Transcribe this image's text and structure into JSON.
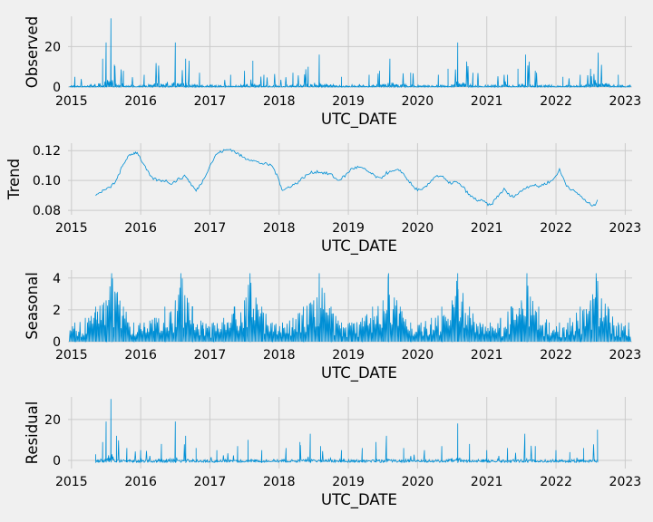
{
  "figure": {
    "background": "#f0f0f0",
    "line_color": "#008fd5",
    "grid_color": "#cbcbcb"
  },
  "chart_data": [
    {
      "type": "line",
      "panel": "observed",
      "xlabel": "UTC_DATE",
      "ylabel": "Observed",
      "xlim": [
        2014.95,
        2023.1
      ],
      "ylim": [
        -0.5,
        35
      ],
      "x_ticks": [
        2015,
        2016,
        2017,
        2018,
        2019,
        2020,
        2021,
        2022,
        2023
      ],
      "x_tick_labels": [
        "2015",
        "2016",
        "2017",
        "2018",
        "2019",
        "2020",
        "2021",
        "2022",
        "2023"
      ],
      "y_ticks": [
        0,
        20
      ],
      "y_tick_labels": [
        "0",
        "20"
      ],
      "grid": true,
      "series": [
        {
          "x": [
            2015.05,
            2015.45,
            2015.5,
            2015.57,
            2015.62,
            2015.75,
            2016.05,
            2016.5,
            2016.65,
            2016.7,
            2016.85,
            2017.3,
            2017.5,
            2017.62,
            2017.78,
            2018.2,
            2018.42,
            2018.58,
            2018.9,
            2019.3,
            2019.45,
            2019.6,
            2019.9,
            2020.3,
            2020.44,
            2020.58,
            2020.8,
            2021.3,
            2021.45,
            2021.56,
            2021.7,
            2022.1,
            2022.35,
            2022.5,
            2022.61,
            2022.9
          ],
          "y": [
            5,
            14,
            22,
            34,
            11,
            8,
            6,
            22,
            14,
            13,
            7,
            6,
            8,
            13,
            6,
            7,
            10,
            16,
            5,
            6,
            8,
            14,
            7,
            6,
            9,
            22,
            7,
            6,
            9,
            16,
            8,
            5,
            6,
            9,
            17,
            6
          ]
        }
      ]
    },
    {
      "type": "line",
      "panel": "trend",
      "xlabel": "UTC_DATE",
      "ylabel": "Trend",
      "xlim": [
        2014.95,
        2023.1
      ],
      "ylim": [
        0.077,
        0.125
      ],
      "x_ticks": [
        2015,
        2016,
        2017,
        2018,
        2019,
        2020,
        2021,
        2022,
        2023
      ],
      "x_tick_labels": [
        "2015",
        "2016",
        "2017",
        "2018",
        "2019",
        "2020",
        "2021",
        "2022",
        "2023"
      ],
      "y_ticks": [
        0.08,
        0.1,
        0.12
      ],
      "y_tick_labels": [
        "0.08",
        "0.10",
        "0.12"
      ],
      "grid": true,
      "series": [
        {
          "x": [
            2015.35,
            2015.45,
            2015.55,
            2015.65,
            2015.72,
            2015.8,
            2015.88,
            2015.95,
            2016.05,
            2016.15,
            2016.25,
            2016.35,
            2016.45,
            2016.55,
            2016.65,
            2016.72,
            2016.8,
            2016.9,
            2017.0,
            2017.1,
            2017.2,
            2017.3,
            2017.4,
            2017.5,
            2017.6,
            2017.7,
            2017.8,
            2017.9,
            2018.0,
            2018.05,
            2018.15,
            2018.25,
            2018.35,
            2018.45,
            2018.55,
            2018.65,
            2018.75,
            2018.85,
            2018.95,
            2019.05,
            2019.15,
            2019.25,
            2019.35,
            2019.45,
            2019.55,
            2019.65,
            2019.75,
            2019.85,
            2019.95,
            2020.05,
            2020.15,
            2020.25,
            2020.35,
            2020.45,
            2020.55,
            2020.65,
            2020.75,
            2020.85,
            2020.95,
            2021.05,
            2021.15,
            2021.25,
            2021.35,
            2021.45,
            2021.55,
            2021.65,
            2021.75,
            2021.85,
            2021.95,
            2022.05,
            2022.15,
            2022.25,
            2022.35,
            2022.45,
            2022.55,
            2022.6
          ],
          "y": [
            0.09,
            0.093,
            0.095,
            0.1,
            0.108,
            0.115,
            0.118,
            0.119,
            0.11,
            0.102,
            0.1,
            0.1,
            0.098,
            0.101,
            0.103,
            0.098,
            0.093,
            0.1,
            0.11,
            0.118,
            0.12,
            0.121,
            0.118,
            0.115,
            0.114,
            0.112,
            0.111,
            0.11,
            0.1,
            0.093,
            0.096,
            0.098,
            0.102,
            0.105,
            0.106,
            0.105,
            0.104,
            0.1,
            0.103,
            0.108,
            0.109,
            0.107,
            0.104,
            0.101,
            0.105,
            0.106,
            0.107,
            0.101,
            0.095,
            0.093,
            0.097,
            0.103,
            0.103,
            0.098,
            0.099,
            0.096,
            0.09,
            0.087,
            0.086,
            0.083,
            0.089,
            0.094,
            0.089,
            0.091,
            0.095,
            0.097,
            0.096,
            0.098,
            0.1,
            0.107,
            0.097,
            0.093,
            0.09,
            0.085,
            0.083,
            0.087
          ]
        }
      ]
    },
    {
      "type": "line",
      "panel": "seasonal",
      "xlabel": "UTC_DATE",
      "ylabel": "Seasonal",
      "xlim": [
        2014.95,
        2023.1
      ],
      "ylim": [
        0,
        4.5
      ],
      "x_ticks": [
        2015,
        2016,
        2017,
        2018,
        2019,
        2020,
        2021,
        2022,
        2023
      ],
      "x_tick_labels": [
        "2015",
        "2016",
        "2017",
        "2018",
        "2019",
        "2020",
        "2021",
        "2022",
        "2023"
      ],
      "y_ticks": [
        0,
        2,
        4
      ],
      "y_tick_labels": [
        "0",
        "2",
        "4"
      ],
      "grid": true,
      "series": [
        {
          "x": [
            2015.05,
            2015.2,
            2015.35,
            2015.5,
            2015.58,
            2015.75,
            2015.9,
            2016.05,
            2016.2,
            2016.35,
            2016.5,
            2016.58,
            2016.75,
            2016.9,
            2017.05,
            2017.2,
            2017.35,
            2017.5,
            2017.58,
            2017.75,
            2017.9,
            2018.05,
            2018.2,
            2018.35,
            2018.5,
            2018.58,
            2018.75,
            2018.9,
            2019.05,
            2019.2,
            2019.35,
            2019.5,
            2019.58,
            2019.75,
            2019.9,
            2020.05,
            2020.2,
            2020.35,
            2020.5,
            2020.58,
            2020.75,
            2020.9,
            2021.05,
            2021.2,
            2021.35,
            2021.5,
            2021.58,
            2021.75,
            2021.9,
            2022.05,
            2022.2,
            2022.35,
            2022.5,
            2022.58,
            2022.75,
            2022.9,
            2023.05
          ],
          "y": [
            1.2,
            1.5,
            2.2,
            2.6,
            4.3,
            2.2,
            1.2,
            1.2,
            1.5,
            2.2,
            2.6,
            4.3,
            2.2,
            1.2,
            1.2,
            1.5,
            2.2,
            2.6,
            4.3,
            2.2,
            1.2,
            1.2,
            1.5,
            2.2,
            2.6,
            4.3,
            2.2,
            1.2,
            1.2,
            1.5,
            2.2,
            2.6,
            4.3,
            2.2,
            1.2,
            1.2,
            1.5,
            2.2,
            2.6,
            4.3,
            2.2,
            1.2,
            1.2,
            1.5,
            2.2,
            2.6,
            4.3,
            2.2,
            1.2,
            1.2,
            1.5,
            2.2,
            2.6,
            4.3,
            2.2,
            1.2,
            1.2
          ]
        }
      ]
    },
    {
      "type": "line",
      "panel": "residual",
      "xlabel": "UTC_DATE",
      "ylabel": "Residual",
      "xlim": [
        2014.95,
        2023.1
      ],
      "ylim": [
        -4,
        31
      ],
      "x_ticks": [
        2015,
        2016,
        2017,
        2018,
        2019,
        2020,
        2021,
        2022,
        2023
      ],
      "x_tick_labels": [
        "2015",
        "2016",
        "2017",
        "2018",
        "2019",
        "2020",
        "2021",
        "2022",
        "2023"
      ],
      "y_ticks": [
        0,
        20
      ],
      "y_tick_labels": [
        "0",
        "20"
      ],
      "grid": true,
      "series": [
        {
          "x": [
            2015.35,
            2015.45,
            2015.5,
            2015.57,
            2015.65,
            2015.8,
            2016.0,
            2016.3,
            2016.5,
            2016.65,
            2016.8,
            2017.1,
            2017.4,
            2017.55,
            2017.75,
            2018.1,
            2018.3,
            2018.45,
            2018.6,
            2018.9,
            2019.2,
            2019.4,
            2019.55,
            2019.8,
            2020.1,
            2020.35,
            2020.58,
            2020.75,
            2021.0,
            2021.3,
            2021.55,
            2021.7,
            2022.0,
            2022.2,
            2022.4,
            2022.6
          ],
          "y": [
            3,
            9,
            19,
            30,
            12,
            6,
            5,
            8,
            19,
            12,
            6,
            5,
            7,
            10,
            5,
            6,
            9,
            13,
            7,
            5,
            6,
            9,
            12,
            6,
            5,
            7,
            18,
            8,
            5,
            6,
            13,
            7,
            5,
            4,
            6,
            15
          ]
        }
      ]
    }
  ]
}
